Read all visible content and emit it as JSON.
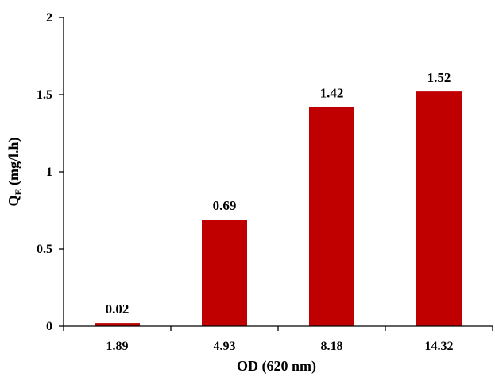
{
  "chart_data": {
    "type": "bar",
    "title": "",
    "xlabel": "OD (620 nm)",
    "ylabel": {
      "main": "Q",
      "subscript": "E",
      "rest": " (mg/l.h)"
    },
    "categories": [
      "1.89",
      "4.93",
      "8.18",
      "14.32"
    ],
    "values": [
      0.02,
      0.69,
      1.42,
      1.52
    ],
    "data_labels": [
      "0.02",
      "0.69",
      "1.42",
      "1.52"
    ],
    "ylim": [
      0,
      2
    ],
    "yticks": [
      0,
      0.5,
      1,
      1.5,
      2
    ],
    "ytick_labels": [
      "0",
      "0.5",
      "1",
      "1.5",
      "2"
    ],
    "bar_color": "#c00000",
    "grid": false,
    "legend": "none"
  }
}
